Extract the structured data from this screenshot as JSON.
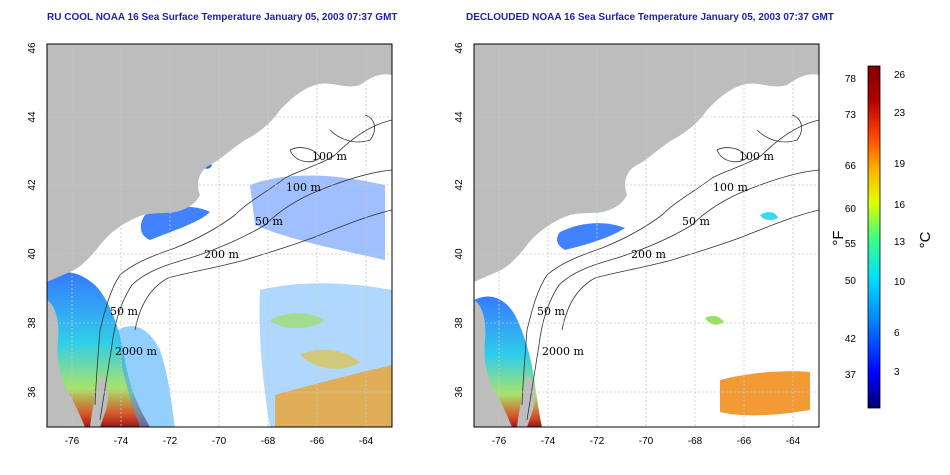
{
  "titles": {
    "left": "RU COOL NOAA 16 Sea Surface Temperature January 05, 2003 07:37 GMT",
    "right": "DECLOUDED NOAA 16 Sea Surface Temperature January 05, 2003 07:37 GMT"
  },
  "axes": {
    "lon_ticks": [
      "-76",
      "-74",
      "-72",
      "-70",
      "-68",
      "-66",
      "-64"
    ],
    "lat_ticks": [
      "46",
      "44",
      "42",
      "40",
      "38",
      "36"
    ]
  },
  "contour_labels": [
    "100 m",
    "100 m",
    "50 m",
    "200 m",
    "50 m",
    "2000 m"
  ],
  "colorbar": {
    "fahrenheit_unit": "°F",
    "celsius_unit": "°C",
    "fahrenheit_ticks": [
      "78",
      "73",
      "66",
      "60",
      "55",
      "50",
      "42",
      "37"
    ],
    "celsius_ticks": [
      "26",
      "23",
      "19",
      "16",
      "13",
      "10",
      "6",
      "3"
    ],
    "colors": [
      "#00006f",
      "#0000ff",
      "#0080ff",
      "#00e0ff",
      "#40ff80",
      "#e0ff00",
      "#ffb000",
      "#ff4000",
      "#b00000",
      "#800000"
    ]
  },
  "colors": {
    "land": "#bdbdbd",
    "water_background": "#ffffff",
    "grid": "#c8c8c8",
    "title": "#1f1fb0"
  }
}
